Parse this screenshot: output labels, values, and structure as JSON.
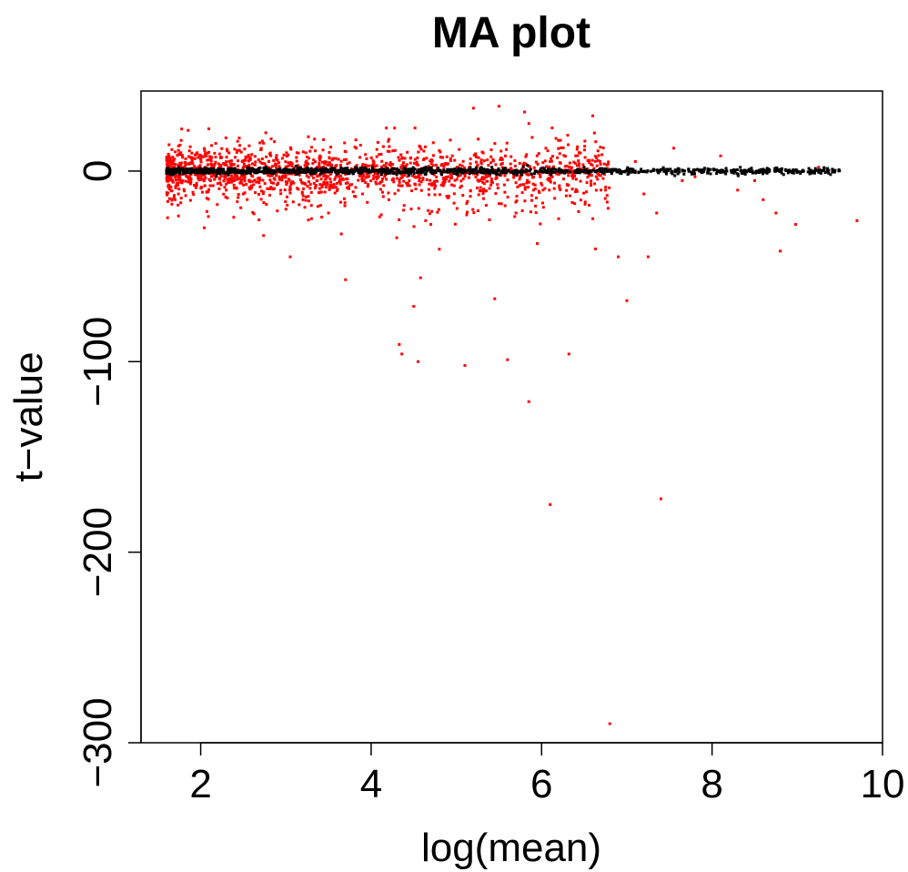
{
  "chart_data": {
    "type": "scatter",
    "title": "MA plot",
    "xlabel": "log(mean)",
    "ylabel": "t−value",
    "xlim": [
      1.3,
      10.0
    ],
    "ylim": [
      -300,
      42
    ],
    "xticks": [
      2,
      4,
      6,
      8,
      10
    ],
    "yticks": [
      0,
      -100,
      -200,
      -300
    ],
    "xtick_labels": [
      "2",
      "4",
      "6",
      "8",
      "10"
    ],
    "ytick_labels": [
      "0",
      "−100",
      "−200",
      "−300"
    ],
    "grid": false,
    "legend": "none",
    "series": [
      {
        "color": "#ff0000",
        "band": {
          "x_range": [
            1.6,
            6.8
          ],
          "y_center": 0,
          "y_spread": 4,
          "count": 1600
        },
        "outliers": [
          [
            1.9,
            6
          ],
          [
            2.3,
            -10
          ],
          [
            2.5,
            -12
          ],
          [
            2.8,
            5
          ],
          [
            3.0,
            -20
          ],
          [
            3.05,
            -45
          ],
          [
            3.2,
            -15
          ],
          [
            3.3,
            -25
          ],
          [
            3.4,
            8
          ],
          [
            3.5,
            -22
          ],
          [
            3.65,
            -33
          ],
          [
            3.7,
            -57
          ],
          [
            3.9,
            -12
          ],
          [
            4.1,
            -24
          ],
          [
            4.3,
            -35
          ],
          [
            4.33,
            -91
          ],
          [
            4.36,
            -96
          ],
          [
            4.5,
            -71
          ],
          [
            4.55,
            -100
          ],
          [
            4.58,
            -56
          ],
          [
            4.7,
            -28
          ],
          [
            4.8,
            -41
          ],
          [
            4.9,
            -14
          ],
          [
            5.1,
            -102
          ],
          [
            5.2,
            33
          ],
          [
            5.35,
            -18
          ],
          [
            5.5,
            34
          ],
          [
            5.45,
            -67
          ],
          [
            5.6,
            -99
          ],
          [
            5.7,
            -22
          ],
          [
            5.8,
            31
          ],
          [
            5.85,
            -121
          ],
          [
            5.95,
            -38
          ],
          [
            6.05,
            12
          ],
          [
            6.1,
            -175
          ],
          [
            6.2,
            -25
          ],
          [
            6.32,
            -96
          ],
          [
            6.4,
            8
          ],
          [
            6.6,
            29
          ],
          [
            6.62,
            20
          ],
          [
            6.75,
            -10
          ],
          [
            6.8,
            -290
          ],
          [
            6.9,
            -45
          ],
          [
            7.0,
            -68
          ],
          [
            7.1,
            5
          ],
          [
            7.2,
            -12
          ],
          [
            7.25,
            -45
          ],
          [
            7.35,
            -22
          ],
          [
            7.4,
            -172
          ],
          [
            7.55,
            12
          ],
          [
            7.65,
            -5
          ],
          [
            7.8,
            -3
          ],
          [
            8.1,
            8
          ],
          [
            8.3,
            -10
          ],
          [
            8.5,
            -5
          ],
          [
            8.6,
            -15
          ],
          [
            8.75,
            -22
          ],
          [
            8.8,
            -42
          ],
          [
            8.98,
            -28
          ],
          [
            9.25,
            2
          ],
          [
            9.7,
            -26
          ]
        ]
      },
      {
        "color": "#000000",
        "band": {
          "x_range": [
            1.6,
            9.5
          ],
          "y_center": 0,
          "y_spread": 0.8,
          "count": 1300
        },
        "outliers": []
      }
    ]
  }
}
